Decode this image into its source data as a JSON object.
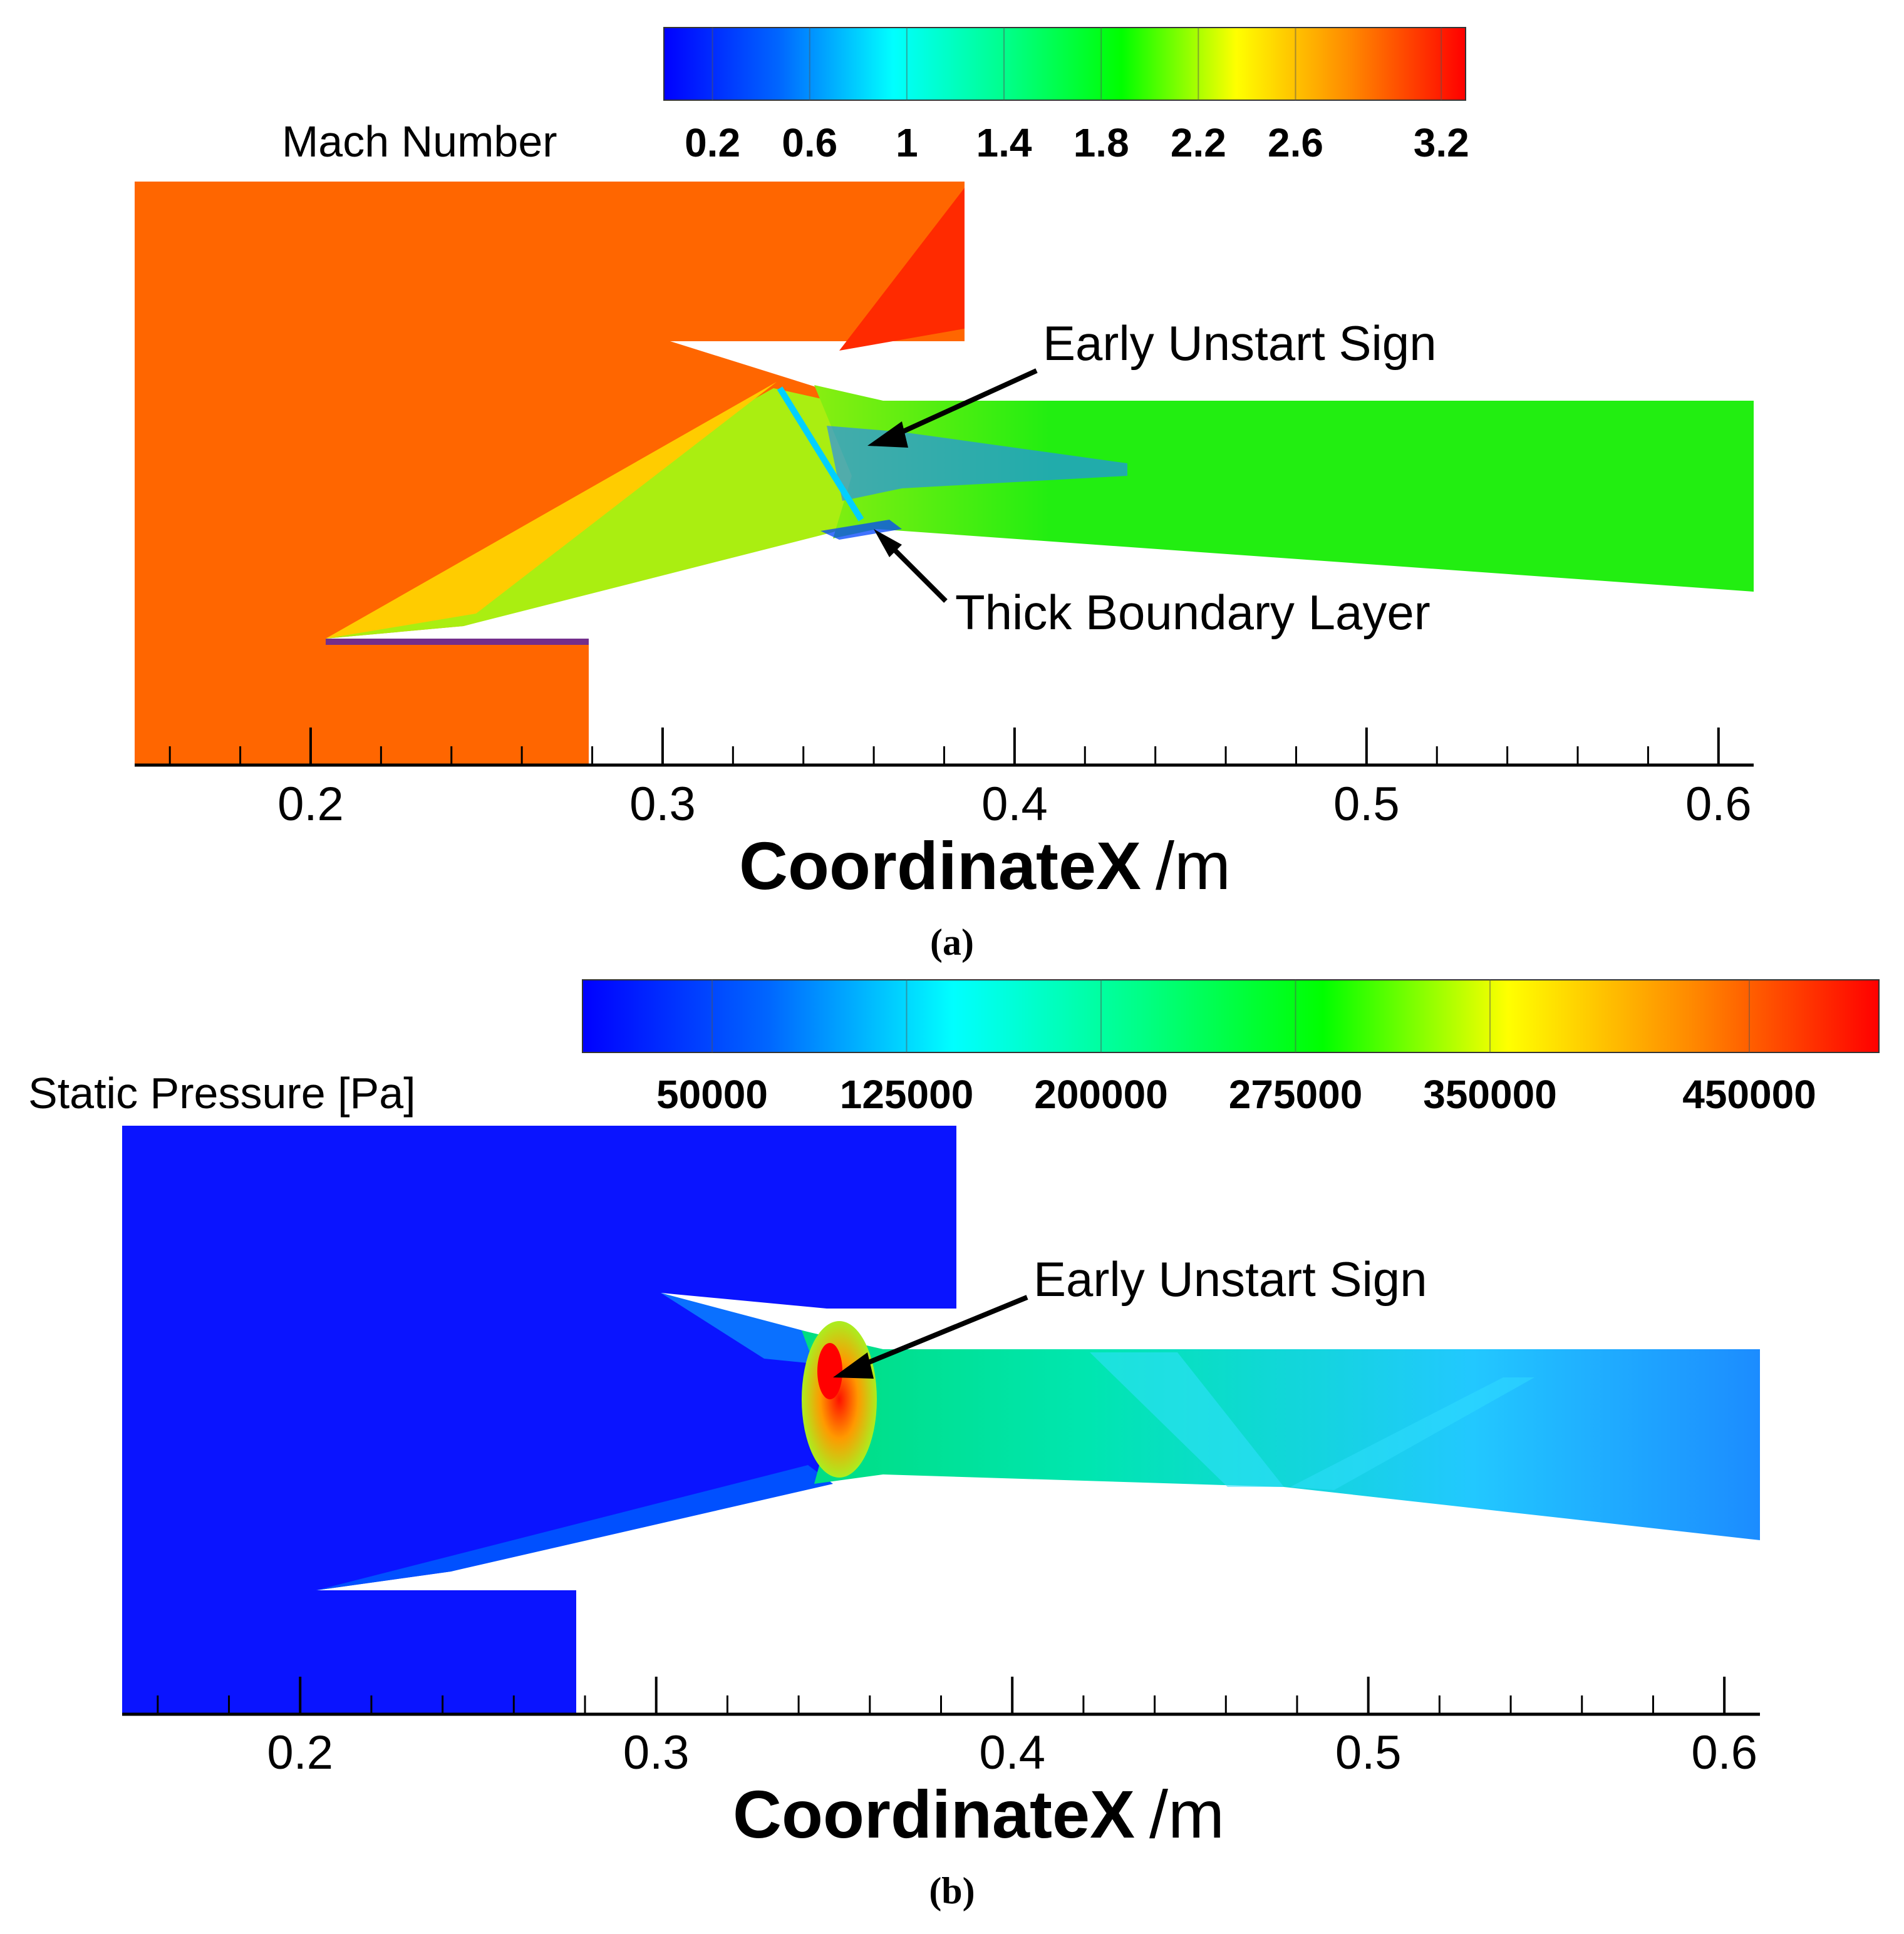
{
  "chart_data": [
    {
      "type": "heatmap",
      "panel_label": "(a)",
      "colorbar_title": "Mach Number",
      "colorbar_ticks": [
        "0.2",
        "0.6",
        "1",
        "1.4",
        "1.8",
        "2.2",
        "2.6",
        "3.2"
      ],
      "colorbar_range": [
        0.0,
        3.3
      ],
      "colors": [
        "#0000ff",
        "#0066ff",
        "#00ffff",
        "#00ff88",
        "#00ff00",
        "#ffff00",
        "#ff8800",
        "#ff0000"
      ],
      "xlabel": "CoordinateX",
      "xunit": "/m",
      "xticks": [
        "0.2",
        "0.3",
        "0.4",
        "0.5",
        "0.6"
      ],
      "xlim": [
        0.15,
        0.61
      ],
      "annotations": [
        "Early Unstart Sign",
        "Thick Boundary Layer"
      ],
      "fields": {
        "freestream": "#ff6600",
        "cowl_tip": "#ff2a00",
        "internal_duct": "#22ee11",
        "ramp_compression": "#aaee11"
      }
    },
    {
      "type": "heatmap",
      "panel_label": "(b)",
      "colorbar_title": "Static Pressure [Pa]",
      "colorbar_ticks": [
        "50000",
        "125000",
        "200000",
        "275000",
        "350000",
        "450000"
      ],
      "colorbar_range": [
        0,
        500000
      ],
      "colors": [
        "#0000ff",
        "#0066ff",
        "#00ffff",
        "#00ff88",
        "#00ff00",
        "#ffff00",
        "#ff8800",
        "#ff0000"
      ],
      "xlabel": "CoordinateX",
      "xunit": "/m",
      "xticks": [
        "0.2",
        "0.3",
        "0.4",
        "0.5",
        "0.6"
      ],
      "xlim": [
        0.15,
        0.61
      ],
      "annotations": [
        "Early Unstart Sign"
      ],
      "fields": {
        "freestream": "#0a14ff",
        "internal_duct": "#00d9a0",
        "exit_region": "#1c8cff",
        "hotspot": "#ff3000"
      }
    }
  ]
}
